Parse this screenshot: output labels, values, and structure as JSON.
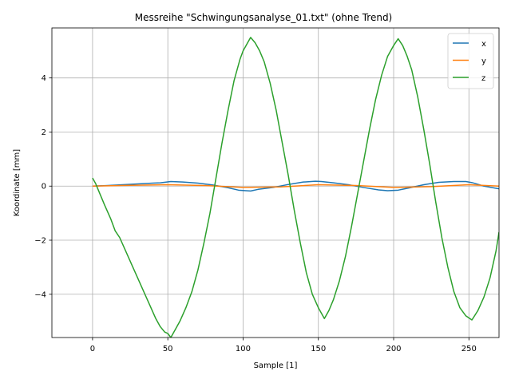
{
  "chart_data": {
    "type": "line",
    "title": "Messreihe \"Schwingungsanalyse_01.txt\" (ohne Trend)",
    "xlabel": "Sample [1]",
    "ylabel": "Koordinate [mm]",
    "xlim": [
      -27,
      270
    ],
    "ylim": [
      -5.6,
      5.85
    ],
    "xticks": [
      0,
      50,
      100,
      150,
      200,
      250
    ],
    "xtick_labels": [
      "0",
      "50",
      "100",
      "150",
      "200",
      "250"
    ],
    "yticks": [
      -4,
      -2,
      0,
      2,
      4
    ],
    "ytick_labels": [
      "−4",
      "−2",
      "0",
      "2",
      "4"
    ],
    "grid": true,
    "legend_position": "top-right",
    "series": [
      {
        "name": "x",
        "color": "#1f77b4",
        "x": [
          0,
          10,
          20,
          30,
          40,
          45,
          52,
          60,
          70,
          80,
          90,
          97,
          105,
          110,
          120,
          130,
          140,
          148,
          152,
          160,
          170,
          180,
          190,
          196,
          203,
          210,
          220,
          230,
          240,
          248,
          252,
          260,
          270
        ],
        "y": [
          0.0,
          0.02,
          0.05,
          0.08,
          0.11,
          0.12,
          0.17,
          0.15,
          0.11,
          0.04,
          -0.06,
          -0.15,
          -0.18,
          -0.12,
          -0.05,
          0.06,
          0.15,
          0.18,
          0.17,
          0.12,
          0.05,
          -0.05,
          -0.14,
          -0.17,
          -0.15,
          -0.07,
          0.05,
          0.14,
          0.17,
          0.17,
          0.13,
          0.0,
          -0.1
        ]
      },
      {
        "name": "y",
        "color": "#ff7f0e",
        "x": [
          0,
          25,
          50,
          75,
          100,
          125,
          150,
          175,
          200,
          225,
          250,
          270
        ],
        "y": [
          0.0,
          0.03,
          0.05,
          0.02,
          -0.05,
          -0.03,
          0.05,
          0.02,
          -0.05,
          -0.02,
          0.05,
          0.0
        ]
      },
      {
        "name": "z",
        "color": "#2ca02c",
        "x": [
          0,
          2,
          5,
          8,
          12,
          15,
          18,
          22,
          26,
          30,
          34,
          38,
          42,
          45,
          48,
          50,
          52,
          55,
          58,
          62,
          66,
          70,
          74,
          78,
          82,
          86,
          90,
          94,
          98,
          100,
          102,
          105,
          108,
          111,
          114,
          118,
          122,
          126,
          130,
          134,
          138,
          142,
          146,
          150,
          152,
          154,
          157,
          160,
          164,
          168,
          172,
          176,
          180,
          184,
          188,
          192,
          196,
          200,
          203,
          206,
          209,
          212,
          216,
          220,
          224,
          228,
          232,
          236,
          240,
          244,
          248,
          252,
          256,
          260,
          264,
          268,
          270
        ],
        "y": [
          0.3,
          0.1,
          -0.3,
          -0.7,
          -1.2,
          -1.65,
          -1.9,
          -2.4,
          -2.9,
          -3.4,
          -3.9,
          -4.4,
          -4.9,
          -5.2,
          -5.4,
          -5.45,
          -5.6,
          -5.3,
          -5.0,
          -4.5,
          -3.9,
          -3.1,
          -2.1,
          -1.0,
          0.3,
          1.6,
          2.8,
          3.9,
          4.7,
          5.0,
          5.2,
          5.5,
          5.3,
          5.0,
          4.6,
          3.8,
          2.8,
          1.6,
          0.4,
          -0.9,
          -2.1,
          -3.2,
          -4.0,
          -4.5,
          -4.7,
          -4.9,
          -4.6,
          -4.2,
          -3.5,
          -2.6,
          -1.5,
          -0.3,
          0.9,
          2.1,
          3.2,
          4.1,
          4.8,
          5.2,
          5.45,
          5.2,
          4.8,
          4.3,
          3.3,
          2.1,
          0.8,
          -0.6,
          -1.9,
          -3.0,
          -3.9,
          -4.5,
          -4.8,
          -4.95,
          -4.6,
          -4.1,
          -3.4,
          -2.4,
          -1.7
        ]
      }
    ]
  }
}
